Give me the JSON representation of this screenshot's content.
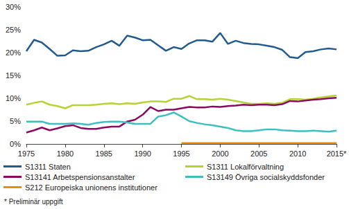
{
  "chart_data": {
    "type": "line",
    "note": "* Preliminär uppgift",
    "x": [
      1975,
      1976,
      1977,
      1978,
      1979,
      1980,
      1981,
      1982,
      1983,
      1984,
      1985,
      1986,
      1987,
      1988,
      1989,
      1990,
      1991,
      1992,
      1993,
      1994,
      1995,
      1996,
      1997,
      1998,
      1999,
      2000,
      2001,
      2002,
      2003,
      2004,
      2005,
      2006,
      2007,
      2008,
      2009,
      2010,
      2011,
      2012,
      2013,
      2014,
      2015
    ],
    "xlim": [
      1975,
      2015
    ],
    "xticks": [
      1975,
      1980,
      1985,
      1990,
      1995,
      2000,
      2005,
      2010,
      {
        "value": 2015,
        "label": "2015*"
      }
    ],
    "ylim": [
      0,
      30
    ],
    "yticks": [
      {
        "value": 0,
        "label": "0%"
      },
      {
        "value": 5,
        "label": "5%"
      },
      {
        "value": 10,
        "label": "10%"
      },
      {
        "value": 15,
        "label": "15%"
      },
      {
        "value": 20,
        "label": "20%"
      },
      {
        "value": 25,
        "label": "25%"
      },
      {
        "value": 30,
        "label": "30%"
      }
    ],
    "grid": false,
    "legend": "bottom",
    "series": [
      {
        "name": "S1311 Staten",
        "color": "#215a8f",
        "values": [
          20.3,
          22.8,
          22.2,
          20.8,
          19.3,
          19.4,
          20.5,
          20.3,
          20.4,
          21.2,
          21.8,
          22.6,
          21.5,
          23.7,
          23.3,
          22.7,
          22.8,
          21.6,
          20.4,
          21.2,
          20.8,
          22.0,
          22.7,
          22.7,
          22.4,
          24.3,
          21.9,
          22.6,
          22.1,
          21.9,
          21.8,
          21.5,
          21.2,
          20.6,
          19.0,
          18.8,
          20.1,
          20.3,
          20.7,
          20.9,
          20.7
        ]
      },
      {
        "name": "S1311 Lokalförvaltning",
        "color": "#b5d334",
        "values": [
          8.6,
          9.0,
          9.3,
          8.6,
          8.3,
          7.8,
          8.5,
          8.5,
          8.5,
          8.6,
          8.8,
          8.9,
          8.7,
          8.9,
          8.8,
          9.1,
          9.3,
          9.3,
          9.2,
          9.9,
          9.9,
          10.5,
          9.8,
          9.8,
          9.7,
          9.9,
          9.7,
          9.4,
          9.1,
          8.8,
          8.8,
          8.9,
          8.8,
          9.0,
          9.8,
          9.8,
          9.7,
          9.9,
          10.2,
          10.4,
          10.6
        ]
      },
      {
        "name": "S13141 Arbetspensionsanstalter",
        "color": "#8b0a60",
        "values": [
          2.5,
          3.0,
          3.6,
          3.0,
          3.4,
          3.9,
          4.1,
          3.5,
          3.3,
          3.3,
          3.6,
          3.8,
          3.8,
          4.9,
          5.3,
          6.4,
          8.1,
          7.2,
          7.5,
          7.5,
          7.8,
          8.1,
          8.0,
          8.0,
          8.2,
          8.1,
          8.3,
          8.4,
          8.6,
          8.5,
          8.6,
          8.6,
          8.5,
          8.7,
          9.4,
          9.3,
          9.5,
          9.7,
          9.8,
          10.0,
          10.1
        ]
      },
      {
        "name": "S13149 Övriga socialskyddsfonder",
        "color": "#3cbfc0",
        "values": [
          4.9,
          4.9,
          4.9,
          4.4,
          4.4,
          4.4,
          4.5,
          4.4,
          4.2,
          4.6,
          4.8,
          4.9,
          4.9,
          4.7,
          4.4,
          4.4,
          4.4,
          6.0,
          6.3,
          6.9,
          6.0,
          5.0,
          4.6,
          4.3,
          4.1,
          3.8,
          3.5,
          3.0,
          2.8,
          2.8,
          3.0,
          3.2,
          3.2,
          3.0,
          2.9,
          2.8,
          2.8,
          2.9,
          2.8,
          2.7,
          2.9
        ]
      },
      {
        "name": "S212 Europeiska unionens institutioner",
        "color": "#f08a00",
        "values": [
          null,
          null,
          null,
          null,
          null,
          null,
          null,
          null,
          null,
          null,
          null,
          null,
          null,
          null,
          null,
          null,
          null,
          null,
          null,
          null,
          0.2,
          0.2,
          0.2,
          0.2,
          0.2,
          0.2,
          0.2,
          0.2,
          0.2,
          0.2,
          0.2,
          0.2,
          0.2,
          0.2,
          0.2,
          0.2,
          0.2,
          0.2,
          0.2,
          0.2,
          0.2
        ]
      }
    ]
  }
}
